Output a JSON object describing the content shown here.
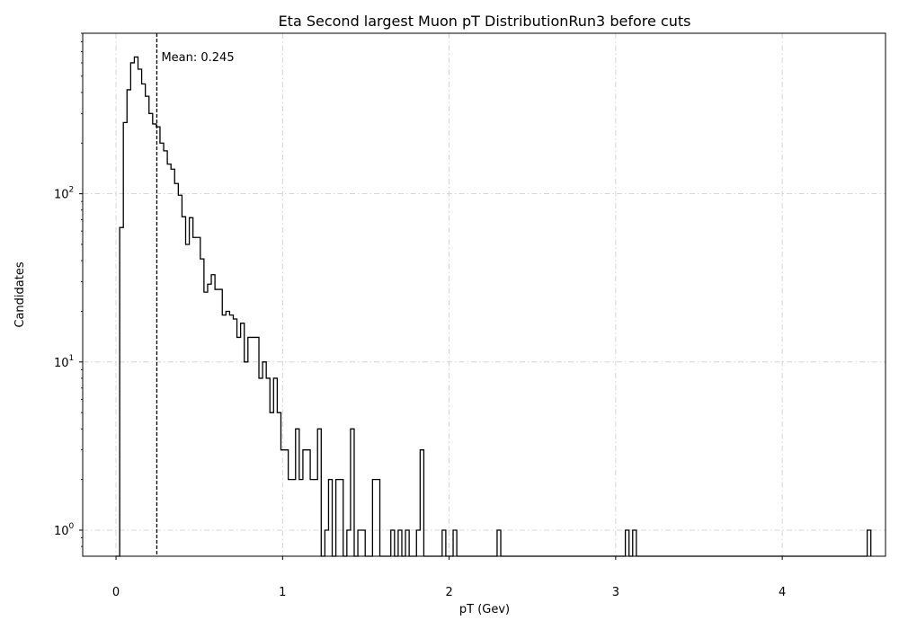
{
  "chart_data": {
    "type": "histogram",
    "title": "Eta Second largest Muon pT DistributionRun3 before cuts",
    "xlabel": "pT (Gev)",
    "ylabel": "Candidates",
    "yscale": "log",
    "xlim": [
      -0.2,
      4.62
    ],
    "ylim": [
      0.7,
      900
    ],
    "grid": true,
    "x_ticks": [
      {
        "value": 0,
        "label": "0"
      },
      {
        "value": 1,
        "label": "1"
      },
      {
        "value": 2,
        "label": "2"
      },
      {
        "value": 3,
        "label": "3"
      },
      {
        "value": 4,
        "label": "4"
      }
    ],
    "y_ticks": [
      {
        "value": 1,
        "base": "10",
        "exp": "0"
      },
      {
        "value": 10,
        "base": "10",
        "exp": "1"
      },
      {
        "value": 100,
        "base": "10",
        "exp": "2"
      }
    ],
    "bin_start": 0.0,
    "bin_width": 0.022,
    "counts": [
      0,
      63,
      265,
      415,
      600,
      650,
      550,
      450,
      380,
      300,
      260,
      250,
      200,
      180,
      150,
      140,
      115,
      98,
      73,
      50,
      72,
      55,
      55,
      41,
      26,
      29,
      33,
      27,
      27,
      19,
      20,
      19,
      18,
      14,
      17,
      10,
      14,
      14,
      14,
      8,
      10,
      8,
      5,
      8,
      5,
      3,
      3,
      2,
      2,
      4,
      2,
      3,
      3,
      2,
      2,
      4,
      0,
      1,
      2,
      0,
      2,
      2,
      0,
      1,
      4,
      0,
      1,
      1,
      0,
      0,
      2,
      2,
      0,
      0,
      0,
      1,
      0,
      1,
      0,
      1,
      0,
      0,
      1,
      3,
      0,
      0,
      0,
      0,
      0,
      1,
      0,
      0,
      1,
      0,
      0,
      0,
      0,
      0,
      0,
      0,
      0,
      0,
      0,
      0,
      1,
      0,
      0,
      0,
      0,
      0,
      0,
      0,
      0,
      0,
      0,
      0,
      0,
      0,
      0,
      0,
      0,
      0,
      0,
      0,
      0,
      0,
      0,
      0,
      0,
      0,
      0,
      0,
      0,
      0,
      0,
      0,
      0,
      0,
      0,
      1,
      0,
      1,
      0,
      0,
      0,
      0,
      0,
      0,
      0,
      0,
      0,
      0,
      0,
      0,
      0,
      0,
      0,
      0,
      0,
      0,
      0,
      0,
      0,
      0,
      0,
      0,
      0,
      0,
      0,
      0,
      0,
      0,
      0,
      0,
      0,
      0,
      0,
      0,
      0,
      0,
      0,
      0,
      0,
      0,
      0,
      0,
      0,
      0,
      0,
      0,
      0,
      0,
      0,
      0,
      0,
      0,
      0,
      0,
      0,
      0,
      0,
      0,
      0,
      0,
      0,
      1
    ],
    "mean": 0.245,
    "mean_label": "Mean: 0.245",
    "line_color": "#000000",
    "grid_color": "#cccccc"
  }
}
